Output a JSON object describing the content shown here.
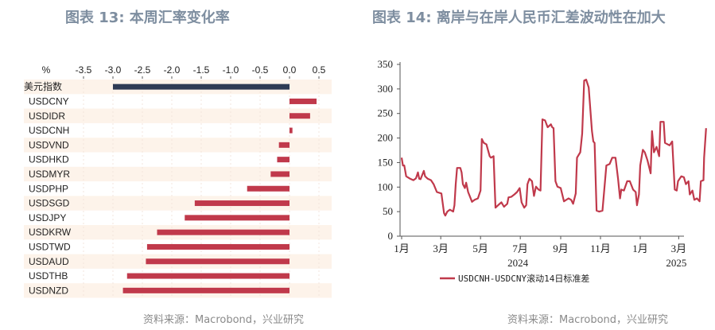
{
  "left": {
    "title": "图表 13: 本周汇率变化率",
    "source": "资料来源：Macrobond，兴业研究"
  },
  "right": {
    "title": "图表 14: 离岸与在岸人民币汇差波动性在加大",
    "source": "资料来源：Macrobond，兴业研究"
  },
  "colors": {
    "index_bar": "#2e3b55",
    "bar": "#c0394b",
    "line": "#c0394b",
    "band": "#fdf3ea",
    "title": "#7e8ea0"
  },
  "chart_data": [
    {
      "type": "bar",
      "orientation": "horizontal",
      "unit_label": "%",
      "xlim": [
        -3.5,
        0.5
      ],
      "xticks": [
        "-3.5",
        "-3.0",
        "-2.5",
        "-2.0",
        "-1.5",
        "-1.0",
        "-0.5",
        "0.0",
        "0.5"
      ],
      "xtick_values": [
        -3.5,
        -3.0,
        -2.5,
        -2.0,
        -1.5,
        -1.0,
        -0.5,
        0.0,
        0.5
      ],
      "categories": [
        "美元指数",
        "USDCNY",
        "USDIDR",
        "USDCNH",
        "USDVND",
        "USDHKD",
        "USDMYR",
        "USDPHP",
        "USDSGD",
        "USDJPY",
        "USDKRW",
        "USDTWD",
        "USDAUD",
        "USDTHB",
        "USDNZD"
      ],
      "values": [
        -3.0,
        0.46,
        0.35,
        0.05,
        -0.18,
        -0.21,
        -0.32,
        -0.72,
        -1.61,
        -1.78,
        -2.25,
        -2.42,
        -2.44,
        -2.76,
        -2.83
      ]
    },
    {
      "type": "line",
      "ylim": [
        0,
        350
      ],
      "yticks": [
        0,
        50,
        100,
        150,
        200,
        250,
        300,
        350
      ],
      "xticks": [
        {
          "date": "2024-01-01",
          "label": "1月"
        },
        {
          "date": "2024-03-01",
          "label": "3月"
        },
        {
          "date": "2024-05-01",
          "label": "5月"
        },
        {
          "date": "2024-07-01",
          "label": "7月"
        },
        {
          "date": "2024-09-01",
          "label": "9月"
        },
        {
          "date": "2024-11-01",
          "label": "11月"
        },
        {
          "date": "2025-01-01",
          "label": "1月"
        },
        {
          "date": "2025-03-01",
          "label": "3月"
        }
      ],
      "year_labels": [
        {
          "date": "2024-07-01",
          "label": "2024"
        },
        {
          "date": "2025-03-01",
          "label": "2025"
        }
      ],
      "legend": "top-none",
      "series": [
        {
          "name": "USDCNH-USDCNY滚动14日标准差",
          "points": [
            [
              "2024-01-01",
              160
            ],
            [
              "2024-01-03",
              144
            ],
            [
              "2024-01-05",
              144
            ],
            [
              "2024-01-08",
              122
            ],
            [
              "2024-01-14",
              117
            ],
            [
              "2024-01-19",
              114
            ],
            [
              "2024-01-23",
              118
            ],
            [
              "2024-01-26",
              130
            ],
            [
              "2024-01-28",
              117
            ],
            [
              "2024-01-30",
              116
            ],
            [
              "2024-02-04",
              133
            ],
            [
              "2024-02-06",
              122
            ],
            [
              "2024-02-10",
              117
            ],
            [
              "2024-02-15",
              114
            ],
            [
              "2024-02-19",
              106
            ],
            [
              "2024-02-24",
              90
            ],
            [
              "2024-03-02",
              87
            ],
            [
              "2024-03-06",
              47
            ],
            [
              "2024-03-08",
              42
            ],
            [
              "2024-03-11",
              50
            ],
            [
              "2024-03-15",
              54
            ],
            [
              "2024-03-20",
              50
            ],
            [
              "2024-03-22",
              63
            ],
            [
              "2024-03-24",
              106
            ],
            [
              "2024-03-26",
              139
            ],
            [
              "2024-03-31",
              139
            ],
            [
              "2024-04-02",
              130
            ],
            [
              "2024-04-04",
              106
            ],
            [
              "2024-04-07",
              98
            ],
            [
              "2024-04-09",
              109
            ],
            [
              "2024-04-12",
              90
            ],
            [
              "2024-04-18",
              70
            ],
            [
              "2024-04-22",
              74
            ],
            [
              "2024-04-27",
              77
            ],
            [
              "2024-05-01",
              93
            ],
            [
              "2024-05-03",
              198
            ],
            [
              "2024-05-06",
              190
            ],
            [
              "2024-05-10",
              187
            ],
            [
              "2024-05-15",
              163
            ],
            [
              "2024-05-17",
              160
            ],
            [
              "2024-05-21",
              163
            ],
            [
              "2024-05-24",
              58
            ],
            [
              "2024-05-28",
              63
            ],
            [
              "2024-06-02",
              69
            ],
            [
              "2024-06-06",
              60
            ],
            [
              "2024-06-11",
              66
            ],
            [
              "2024-06-13",
              79
            ],
            [
              "2024-06-17",
              80
            ],
            [
              "2024-06-22",
              85
            ],
            [
              "2024-06-26",
              90
            ],
            [
              "2024-06-30",
              98
            ],
            [
              "2024-07-03",
              69
            ],
            [
              "2024-07-07",
              58
            ],
            [
              "2024-07-10",
              63
            ],
            [
              "2024-07-12",
              106
            ],
            [
              "2024-07-15",
              117
            ],
            [
              "2024-07-19",
              112
            ],
            [
              "2024-07-22",
              82
            ],
            [
              "2024-07-25",
              101
            ],
            [
              "2024-07-29",
              95
            ],
            [
              "2024-08-01",
              93
            ],
            [
              "2024-08-04",
              238
            ],
            [
              "2024-08-08",
              236
            ],
            [
              "2024-08-12",
              222
            ],
            [
              "2024-08-17",
              228
            ],
            [
              "2024-08-19",
              222
            ],
            [
              "2024-08-21",
              220
            ],
            [
              "2024-08-24",
              112
            ],
            [
              "2024-08-27",
              101
            ],
            [
              "2024-09-01",
              98
            ],
            [
              "2024-09-06",
              71
            ],
            [
              "2024-09-13",
              77
            ],
            [
              "2024-09-17",
              74
            ],
            [
              "2024-09-20",
              66
            ],
            [
              "2024-09-24",
              87
            ],
            [
              "2024-09-26",
              160
            ],
            [
              "2024-10-01",
              171
            ],
            [
              "2024-10-04",
              209
            ],
            [
              "2024-10-07",
              317
            ],
            [
              "2024-10-10",
              319
            ],
            [
              "2024-10-14",
              303
            ],
            [
              "2024-10-19",
              214
            ],
            [
              "2024-10-21",
              193
            ],
            [
              "2024-10-23",
              190
            ],
            [
              "2024-10-26",
              52
            ],
            [
              "2024-10-30",
              50
            ],
            [
              "2024-11-04",
              52
            ],
            [
              "2024-11-08",
              112
            ],
            [
              "2024-11-10",
              144
            ],
            [
              "2024-11-15",
              147
            ],
            [
              "2024-11-19",
              160
            ],
            [
              "2024-11-24",
              160
            ],
            [
              "2024-11-28",
              117
            ],
            [
              "2024-12-01",
              77
            ],
            [
              "2024-12-03",
              95
            ],
            [
              "2024-12-07",
              93
            ],
            [
              "2024-12-12",
              112
            ],
            [
              "2024-12-16",
              112
            ],
            [
              "2024-12-21",
              95
            ],
            [
              "2024-12-25",
              90
            ],
            [
              "2024-12-27",
              63
            ],
            [
              "2024-12-30",
              85
            ],
            [
              "2025-01-01",
              144
            ],
            [
              "2025-01-05",
              176
            ],
            [
              "2025-01-08",
              171
            ],
            [
              "2025-01-12",
              155
            ],
            [
              "2025-01-17",
              128
            ],
            [
              "2025-01-19",
              214
            ],
            [
              "2025-01-22",
              171
            ],
            [
              "2025-01-26",
              182
            ],
            [
              "2025-01-30",
              163
            ],
            [
              "2025-02-01",
              233
            ],
            [
              "2025-02-06",
              233
            ],
            [
              "2025-02-08",
              190
            ],
            [
              "2025-02-15",
              185
            ],
            [
              "2025-02-19",
              193
            ],
            [
              "2025-02-23",
              95
            ],
            [
              "2025-02-26",
              93
            ],
            [
              "2025-02-28",
              112
            ],
            [
              "2025-03-05",
              122
            ],
            [
              "2025-03-09",
              120
            ],
            [
              "2025-03-12",
              106
            ],
            [
              "2025-03-16",
              112
            ],
            [
              "2025-03-18",
              85
            ],
            [
              "2025-03-22",
              93
            ],
            [
              "2025-03-25",
              74
            ],
            [
              "2025-03-29",
              77
            ],
            [
              "2025-04-02",
              71
            ],
            [
              "2025-04-04",
              112
            ],
            [
              "2025-04-08",
              114
            ],
            [
              "2025-04-09",
              160
            ],
            [
              "2025-04-12",
              220
            ]
          ]
        }
      ]
    }
  ]
}
